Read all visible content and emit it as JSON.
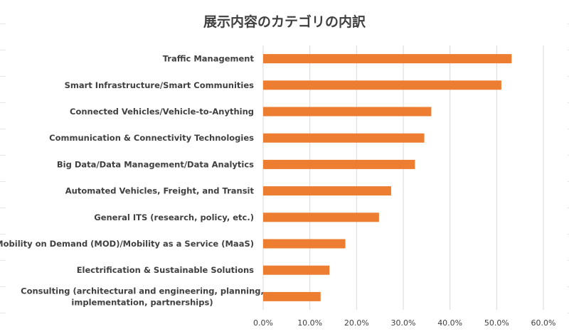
{
  "chart_data": {
    "type": "bar",
    "orientation": "horizontal",
    "title": "展示内容のカテゴリの内訳",
    "categories": [
      [
        "Traffic Management"
      ],
      [
        "Smart Infrastructure/Smart Communities"
      ],
      [
        "Connected Vehicles/Vehicle-to-Anything"
      ],
      [
        "Communication & Connectivity Technologies"
      ],
      [
        "Big Data/Data Management/Data Analytics"
      ],
      [
        "Automated Vehicles, Freight, and Transit"
      ],
      [
        "General ITS (research, policy, etc.)"
      ],
      [
        "Mobility on Demand (MOD)/Mobility as a Service (MaaS)"
      ],
      [
        "Electrification & Sustainable Solutions"
      ],
      [
        "Consulting (architectural and engineering, planning,",
        "implementation, partnerships)"
      ]
    ],
    "values": [
      53.2,
      51.0,
      36.0,
      34.5,
      32.5,
      27.4,
      24.8,
      17.6,
      14.2,
      12.3
    ],
    "xlim": [
      0,
      60
    ],
    "xticks": [
      0,
      10,
      20,
      30,
      40,
      50,
      60
    ],
    "xtick_labels": [
      "0.0%",
      "10.0%",
      "20.0%",
      "30.0%",
      "40.0%",
      "50.0%",
      "60.0%"
    ],
    "grid": "vertical",
    "bar_color": "#ED7D31",
    "grid_color": "#d9d9d9"
  }
}
